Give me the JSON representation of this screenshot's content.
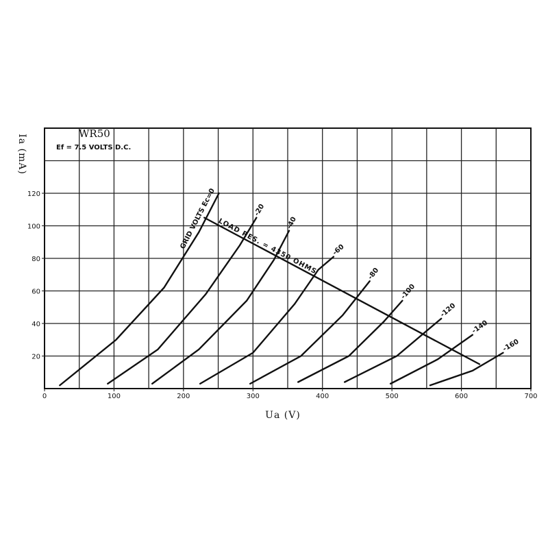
{
  "chart_data": {
    "type": "line",
    "title": "WR50",
    "subtitle": "Ef = 7.5 VOLTS D.C.",
    "x_label": "Ua (V)",
    "y_label": "Ia (mA)",
    "xlim": [
      0,
      700
    ],
    "ylim": [
      0,
      160
    ],
    "xticks": [
      0,
      100,
      200,
      300,
      400,
      500,
      600,
      700
    ],
    "yticks": [
      20,
      40,
      60,
      80,
      100,
      120
    ],
    "xgrid": [
      50,
      100,
      150,
      200,
      250,
      300,
      350,
      400,
      450,
      500,
      550,
      600,
      650
    ],
    "ygrid": [
      20,
      40,
      60,
      80,
      100,
      120,
      140
    ],
    "color": "#111111",
    "series": [
      {
        "name": "GRID VOLTS Ec=0",
        "x": [
          22,
          103,
          172,
          222,
          251
        ],
        "values": [
          2,
          30,
          62,
          96,
          120
        ]
      },
      {
        "name": "-20",
        "x": [
          91,
          163,
          232,
          281,
          305
        ],
        "values": [
          3,
          24,
          58,
          88,
          105
        ]
      },
      {
        "name": "-40",
        "x": [
          155,
          222,
          291,
          330,
          352
        ],
        "values": [
          3,
          24,
          54,
          79,
          97
        ]
      },
      {
        "name": "-60",
        "x": [
          224,
          300,
          360,
          394,
          416
        ],
        "values": [
          3,
          22,
          52,
          73,
          81
        ]
      },
      {
        "name": "-80",
        "x": [
          296,
          369,
          429,
          468
        ],
        "values": [
          3,
          20,
          45,
          66
        ]
      },
      {
        "name": "-100",
        "x": [
          365,
          438,
          488,
          515
        ],
        "values": [
          4,
          20,
          41,
          54
        ]
      },
      {
        "name": "-120",
        "x": [
          432,
          507,
          571
        ],
        "values": [
          4,
          20,
          43
        ]
      },
      {
        "name": "-140",
        "x": [
          498,
          566,
          616
        ],
        "values": [
          3,
          18,
          33
        ]
      },
      {
        "name": "-160",
        "x": [
          555,
          616,
          660
        ],
        "values": [
          2,
          11,
          22
        ]
      }
    ],
    "load_line": {
      "label": "LOAD RES. = 4350 OHMS",
      "x": [
        230,
        626
      ],
      "values": [
        105,
        15
      ]
    }
  }
}
